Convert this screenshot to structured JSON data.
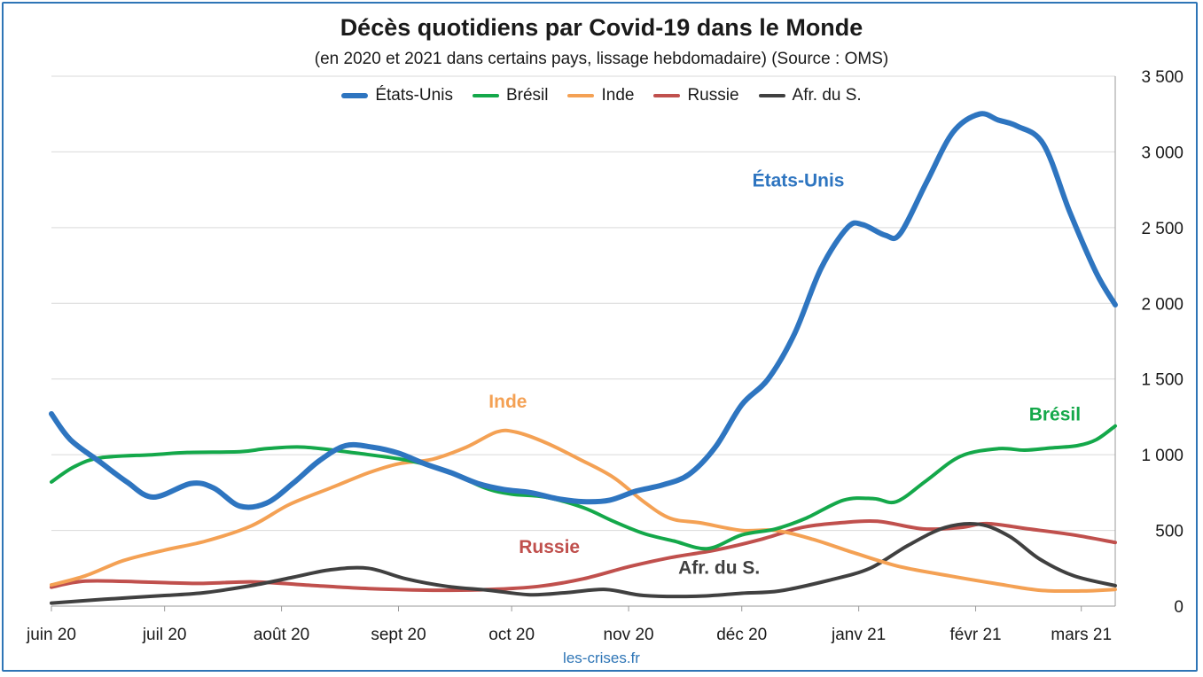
{
  "chart_data": {
    "type": "line",
    "title": "Décès quotidiens par Covid-19 dans le Monde",
    "subtitle": "(en 2020 et 2021 dans certains pays, lissage hebdomadaire) (Source : OMS)",
    "source": "les-crises.fr",
    "legend_position": "top",
    "grid": true,
    "y_axis_side": "right",
    "ylim": [
      0,
      3500
    ],
    "yticks": [
      0,
      500,
      1000,
      1500,
      2000,
      2500,
      3000,
      3500
    ],
    "ytick_labels": [
      "0",
      "500",
      "1 000",
      "1 500",
      "2 000",
      "2 500",
      "3 000",
      "3 500"
    ],
    "xlim": [
      "2020-06-01",
      "2021-03-10"
    ],
    "xticks": [
      {
        "date": "2020-06-01",
        "label": "juin 20"
      },
      {
        "date": "2020-07-01",
        "label": "juil 20"
      },
      {
        "date": "2020-08-01",
        "label": "août 20"
      },
      {
        "date": "2020-09-01",
        "label": "sept 20"
      },
      {
        "date": "2020-10-01",
        "label": "oct 20"
      },
      {
        "date": "2020-11-01",
        "label": "nov 20"
      },
      {
        "date": "2020-12-01",
        "label": "déc 20"
      },
      {
        "date": "2021-01-01",
        "label": "janv 21"
      },
      {
        "date": "2021-02-01",
        "label": "févr 21"
      },
      {
        "date": "2021-03-01",
        "label": "mars 21"
      }
    ],
    "series": [
      {
        "name": "États-Unis",
        "color": "#2e75c0",
        "width": 6,
        "label": {
          "text": "États-Unis",
          "at": [
            "2020-12-16",
            2770
          ]
        },
        "points": [
          [
            "2020-06-01",
            1270
          ],
          [
            "2020-06-06",
            1100
          ],
          [
            "2020-06-14",
            950
          ],
          [
            "2020-06-21",
            820
          ],
          [
            "2020-06-28",
            720
          ],
          [
            "2020-07-08",
            810
          ],
          [
            "2020-07-14",
            780
          ],
          [
            "2020-07-21",
            660
          ],
          [
            "2020-07-28",
            680
          ],
          [
            "2020-08-04",
            810
          ],
          [
            "2020-08-11",
            960
          ],
          [
            "2020-08-18",
            1060
          ],
          [
            "2020-08-25",
            1050
          ],
          [
            "2020-09-01",
            1010
          ],
          [
            "2020-09-08",
            940
          ],
          [
            "2020-09-15",
            880
          ],
          [
            "2020-09-22",
            810
          ],
          [
            "2020-09-29",
            770
          ],
          [
            "2020-10-06",
            750
          ],
          [
            "2020-10-13",
            710
          ],
          [
            "2020-10-20",
            690
          ],
          [
            "2020-10-27",
            700
          ],
          [
            "2020-11-03",
            760
          ],
          [
            "2020-11-10",
            800
          ],
          [
            "2020-11-17",
            870
          ],
          [
            "2020-11-24",
            1050
          ],
          [
            "2020-12-01",
            1330
          ],
          [
            "2020-12-08",
            1500
          ],
          [
            "2020-12-15",
            1800
          ],
          [
            "2020-12-22",
            2230
          ],
          [
            "2020-12-29",
            2500
          ],
          [
            "2021-01-02",
            2520
          ],
          [
            "2021-01-08",
            2450
          ],
          [
            "2021-01-12",
            2460
          ],
          [
            "2021-01-19",
            2800
          ],
          [
            "2021-01-26",
            3130
          ],
          [
            "2021-02-02",
            3250
          ],
          [
            "2021-02-07",
            3210
          ],
          [
            "2021-02-12",
            3170
          ],
          [
            "2021-02-19",
            3050
          ],
          [
            "2021-02-26",
            2600
          ],
          [
            "2021-03-05",
            2200
          ],
          [
            "2021-03-10",
            1990
          ]
        ]
      },
      {
        "name": "Brésil",
        "color": "#14a84a",
        "width": 4,
        "label": {
          "text": "Brésil",
          "at": [
            "2021-02-22",
            1225
          ]
        },
        "points": [
          [
            "2020-06-01",
            820
          ],
          [
            "2020-06-07",
            920
          ],
          [
            "2020-06-14",
            980
          ],
          [
            "2020-06-28",
            1000
          ],
          [
            "2020-07-07",
            1015
          ],
          [
            "2020-07-21",
            1020
          ],
          [
            "2020-07-28",
            1040
          ],
          [
            "2020-08-07",
            1050
          ],
          [
            "2020-08-21",
            1010
          ],
          [
            "2020-09-04",
            960
          ],
          [
            "2020-09-14",
            890
          ],
          [
            "2020-09-24",
            780
          ],
          [
            "2020-10-01",
            740
          ],
          [
            "2020-10-10",
            720
          ],
          [
            "2020-10-20",
            650
          ],
          [
            "2020-10-28",
            560
          ],
          [
            "2020-11-05",
            480
          ],
          [
            "2020-11-13",
            430
          ],
          [
            "2020-11-22",
            380
          ],
          [
            "2020-12-01",
            470
          ],
          [
            "2020-12-10",
            510
          ],
          [
            "2020-12-18",
            580
          ],
          [
            "2020-12-28",
            700
          ],
          [
            "2021-01-05",
            710
          ],
          [
            "2021-01-11",
            690
          ],
          [
            "2021-01-19",
            830
          ],
          [
            "2021-01-28",
            990
          ],
          [
            "2021-02-07",
            1040
          ],
          [
            "2021-02-14",
            1030
          ],
          [
            "2021-02-21",
            1045
          ],
          [
            "2021-02-28",
            1060
          ],
          [
            "2021-03-05",
            1100
          ],
          [
            "2021-03-10",
            1190
          ]
        ]
      },
      {
        "name": "Inde",
        "color": "#f4a154",
        "width": 4,
        "label": {
          "text": "Inde",
          "at": [
            "2020-09-30",
            1310
          ]
        },
        "points": [
          [
            "2020-06-01",
            140
          ],
          [
            "2020-06-10",
            200
          ],
          [
            "2020-06-20",
            300
          ],
          [
            "2020-07-01",
            370
          ],
          [
            "2020-07-12",
            430
          ],
          [
            "2020-07-24",
            530
          ],
          [
            "2020-08-03",
            670
          ],
          [
            "2020-08-14",
            780
          ],
          [
            "2020-08-24",
            880
          ],
          [
            "2020-09-01",
            940
          ],
          [
            "2020-09-10",
            970
          ],
          [
            "2020-09-19",
            1050
          ],
          [
            "2020-09-27",
            1150
          ],
          [
            "2020-10-02",
            1150
          ],
          [
            "2020-10-10",
            1080
          ],
          [
            "2020-10-19",
            970
          ],
          [
            "2020-10-28",
            850
          ],
          [
            "2020-11-05",
            690
          ],
          [
            "2020-11-12",
            580
          ],
          [
            "2020-11-20",
            550
          ],
          [
            "2020-12-01",
            500
          ],
          [
            "2020-12-10",
            500
          ],
          [
            "2020-12-20",
            440
          ],
          [
            "2020-12-31",
            350
          ],
          [
            "2021-01-12",
            260
          ],
          [
            "2021-01-25",
            200
          ],
          [
            "2021-02-06",
            150
          ],
          [
            "2021-02-18",
            105
          ],
          [
            "2021-03-01",
            100
          ],
          [
            "2021-03-10",
            110
          ]
        ]
      },
      {
        "name": "Russie",
        "color": "#c0504d",
        "width": 4,
        "label": {
          "text": "Russie",
          "at": [
            "2020-10-11",
            350
          ]
        },
        "points": [
          [
            "2020-06-01",
            125
          ],
          [
            "2020-06-10",
            165
          ],
          [
            "2020-06-25",
            160
          ],
          [
            "2020-07-10",
            150
          ],
          [
            "2020-07-25",
            160
          ],
          [
            "2020-08-10",
            135
          ],
          [
            "2020-08-25",
            115
          ],
          [
            "2020-09-10",
            105
          ],
          [
            "2020-09-25",
            110
          ],
          [
            "2020-10-08",
            130
          ],
          [
            "2020-10-20",
            180
          ],
          [
            "2020-11-01",
            260
          ],
          [
            "2020-11-12",
            320
          ],
          [
            "2020-11-24",
            370
          ],
          [
            "2020-12-06",
            440
          ],
          [
            "2020-12-17",
            520
          ],
          [
            "2020-12-27",
            550
          ],
          [
            "2021-01-06",
            560
          ],
          [
            "2021-01-18",
            510
          ],
          [
            "2021-01-28",
            520
          ],
          [
            "2021-02-04",
            545
          ],
          [
            "2021-02-15",
            510
          ],
          [
            "2021-02-27",
            470
          ],
          [
            "2021-03-10",
            420
          ]
        ]
      },
      {
        "name": "Afr. du S.",
        "color": "#404040",
        "width": 4,
        "label": {
          "text": "Afr. du S.",
          "at": [
            "2020-11-25",
            215
          ]
        },
        "points": [
          [
            "2020-06-01",
            20
          ],
          [
            "2020-06-15",
            45
          ],
          [
            "2020-07-01",
            70
          ],
          [
            "2020-07-12",
            90
          ],
          [
            "2020-07-25",
            140
          ],
          [
            "2020-08-04",
            190
          ],
          [
            "2020-08-14",
            240
          ],
          [
            "2020-08-24",
            250
          ],
          [
            "2020-09-03",
            180
          ],
          [
            "2020-09-14",
            130
          ],
          [
            "2020-09-25",
            105
          ],
          [
            "2020-10-06",
            75
          ],
          [
            "2020-10-16",
            90
          ],
          [
            "2020-10-26",
            110
          ],
          [
            "2020-11-05",
            70
          ],
          [
            "2020-11-19",
            65
          ],
          [
            "2020-12-01",
            85
          ],
          [
            "2020-12-11",
            100
          ],
          [
            "2020-12-24",
            170
          ],
          [
            "2021-01-04",
            250
          ],
          [
            "2021-01-14",
            400
          ],
          [
            "2021-01-24",
            520
          ],
          [
            "2021-02-02",
            540
          ],
          [
            "2021-02-10",
            460
          ],
          [
            "2021-02-18",
            310
          ],
          [
            "2021-02-27",
            200
          ],
          [
            "2021-03-10",
            135
          ]
        ]
      }
    ]
  }
}
